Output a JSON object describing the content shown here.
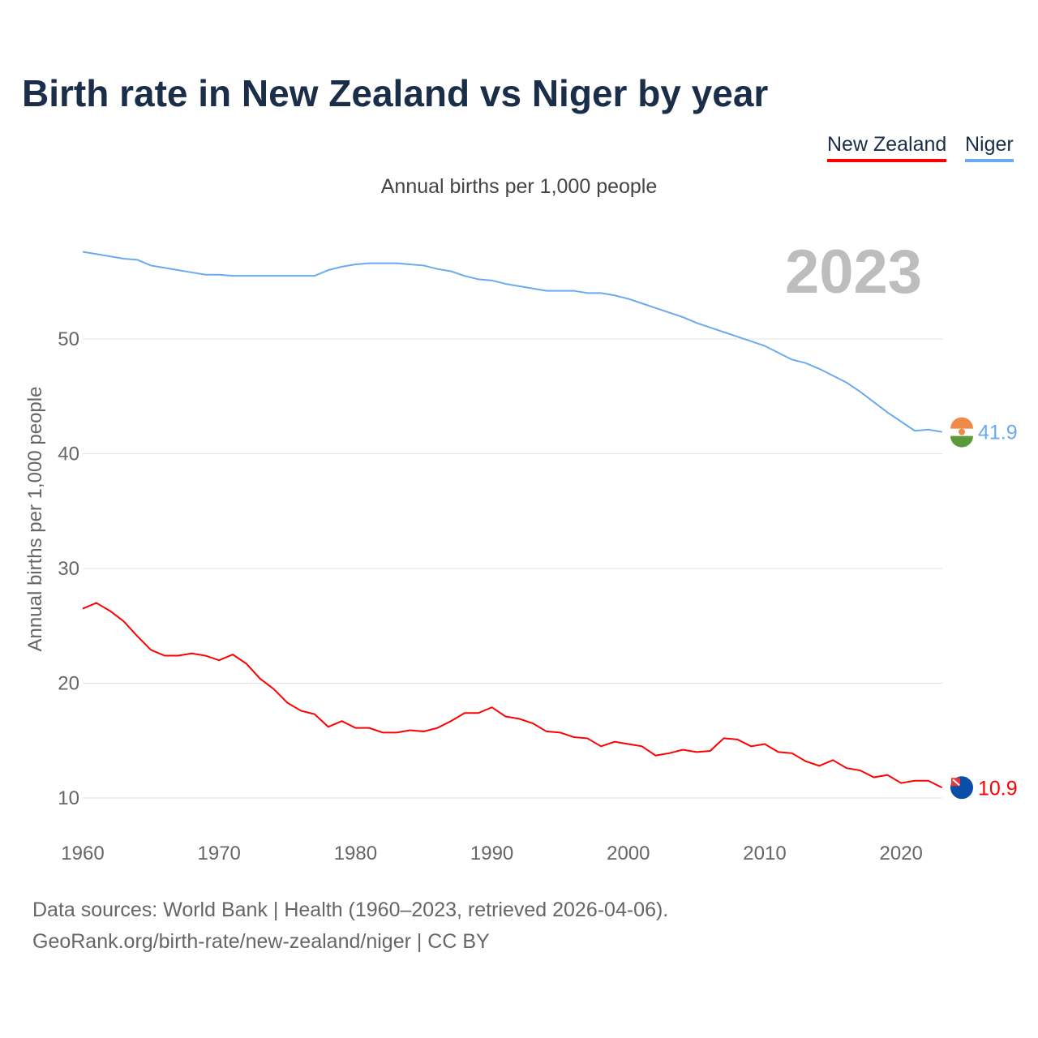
{
  "title": "Birth rate in New Zealand vs Niger by year",
  "legend": [
    {
      "label": "New Zealand",
      "color": "#ff0000"
    },
    {
      "label": "Niger",
      "color": "#6aaaf0"
    }
  ],
  "subtitle": "Annual births per 1,000 people",
  "current_year": "2023",
  "footer": {
    "line1": "Data sources: World Bank | Health (1960–2023, retrieved 2026-04-06).",
    "line2": "GeoRank.org/birth-rate/new-zealand/niger | CC BY"
  },
  "chart_data": {
    "type": "line",
    "title": "Birth rate in New Zealand vs Niger by year",
    "xlabel": "",
    "ylabel": "Annual births per 1,000 people",
    "xlim": [
      1960,
      2023
    ],
    "ylim": [
      10,
      58
    ],
    "xticks": [
      "1960",
      "1970",
      "1980",
      "1990",
      "2000",
      "2010",
      "2020"
    ],
    "yticks": [
      "10",
      "20",
      "30",
      "40",
      "50"
    ],
    "grid": true,
    "legend_position": "top-right",
    "x_start": 1960,
    "series": [
      {
        "name": "New Zealand",
        "color": "#ff0000",
        "end_label": "10.9",
        "values": [
          26.5,
          27.0,
          26.3,
          25.4,
          24.1,
          22.9,
          22.4,
          22.4,
          22.6,
          22.4,
          22.0,
          22.5,
          21.7,
          20.4,
          19.5,
          18.3,
          17.6,
          17.3,
          16.2,
          16.7,
          16.1,
          16.1,
          15.7,
          15.7,
          15.9,
          15.8,
          16.1,
          16.7,
          17.4,
          17.4,
          17.9,
          17.1,
          16.9,
          16.5,
          15.8,
          15.7,
          15.3,
          15.2,
          14.5,
          14.9,
          14.7,
          14.5,
          13.7,
          13.9,
          14.2,
          14.0,
          14.1,
          15.2,
          15.1,
          14.5,
          14.7,
          14.0,
          13.9,
          13.2,
          12.8,
          13.3,
          12.6,
          12.4,
          11.8,
          12.0,
          11.3,
          11.5,
          11.5,
          10.9
        ]
      },
      {
        "name": "Niger",
        "color": "#6aaaf0",
        "end_label": "41.9",
        "values": [
          57.6,
          57.4,
          57.2,
          57.0,
          56.9,
          56.4,
          56.2,
          56.0,
          55.8,
          55.6,
          55.6,
          55.5,
          55.5,
          55.5,
          55.5,
          55.5,
          55.5,
          55.5,
          56.0,
          56.3,
          56.5,
          56.6,
          56.6,
          56.6,
          56.5,
          56.4,
          56.1,
          55.9,
          55.5,
          55.2,
          55.1,
          54.8,
          54.6,
          54.4,
          54.2,
          54.2,
          54.2,
          54.0,
          54.0,
          53.8,
          53.5,
          53.1,
          52.7,
          52.3,
          51.9,
          51.4,
          51.0,
          50.6,
          50.2,
          49.8,
          49.4,
          48.8,
          48.2,
          47.9,
          47.4,
          46.8,
          46.2,
          45.4,
          44.5,
          43.6,
          42.8,
          42.0,
          42.1,
          41.9
        ]
      }
    ]
  }
}
